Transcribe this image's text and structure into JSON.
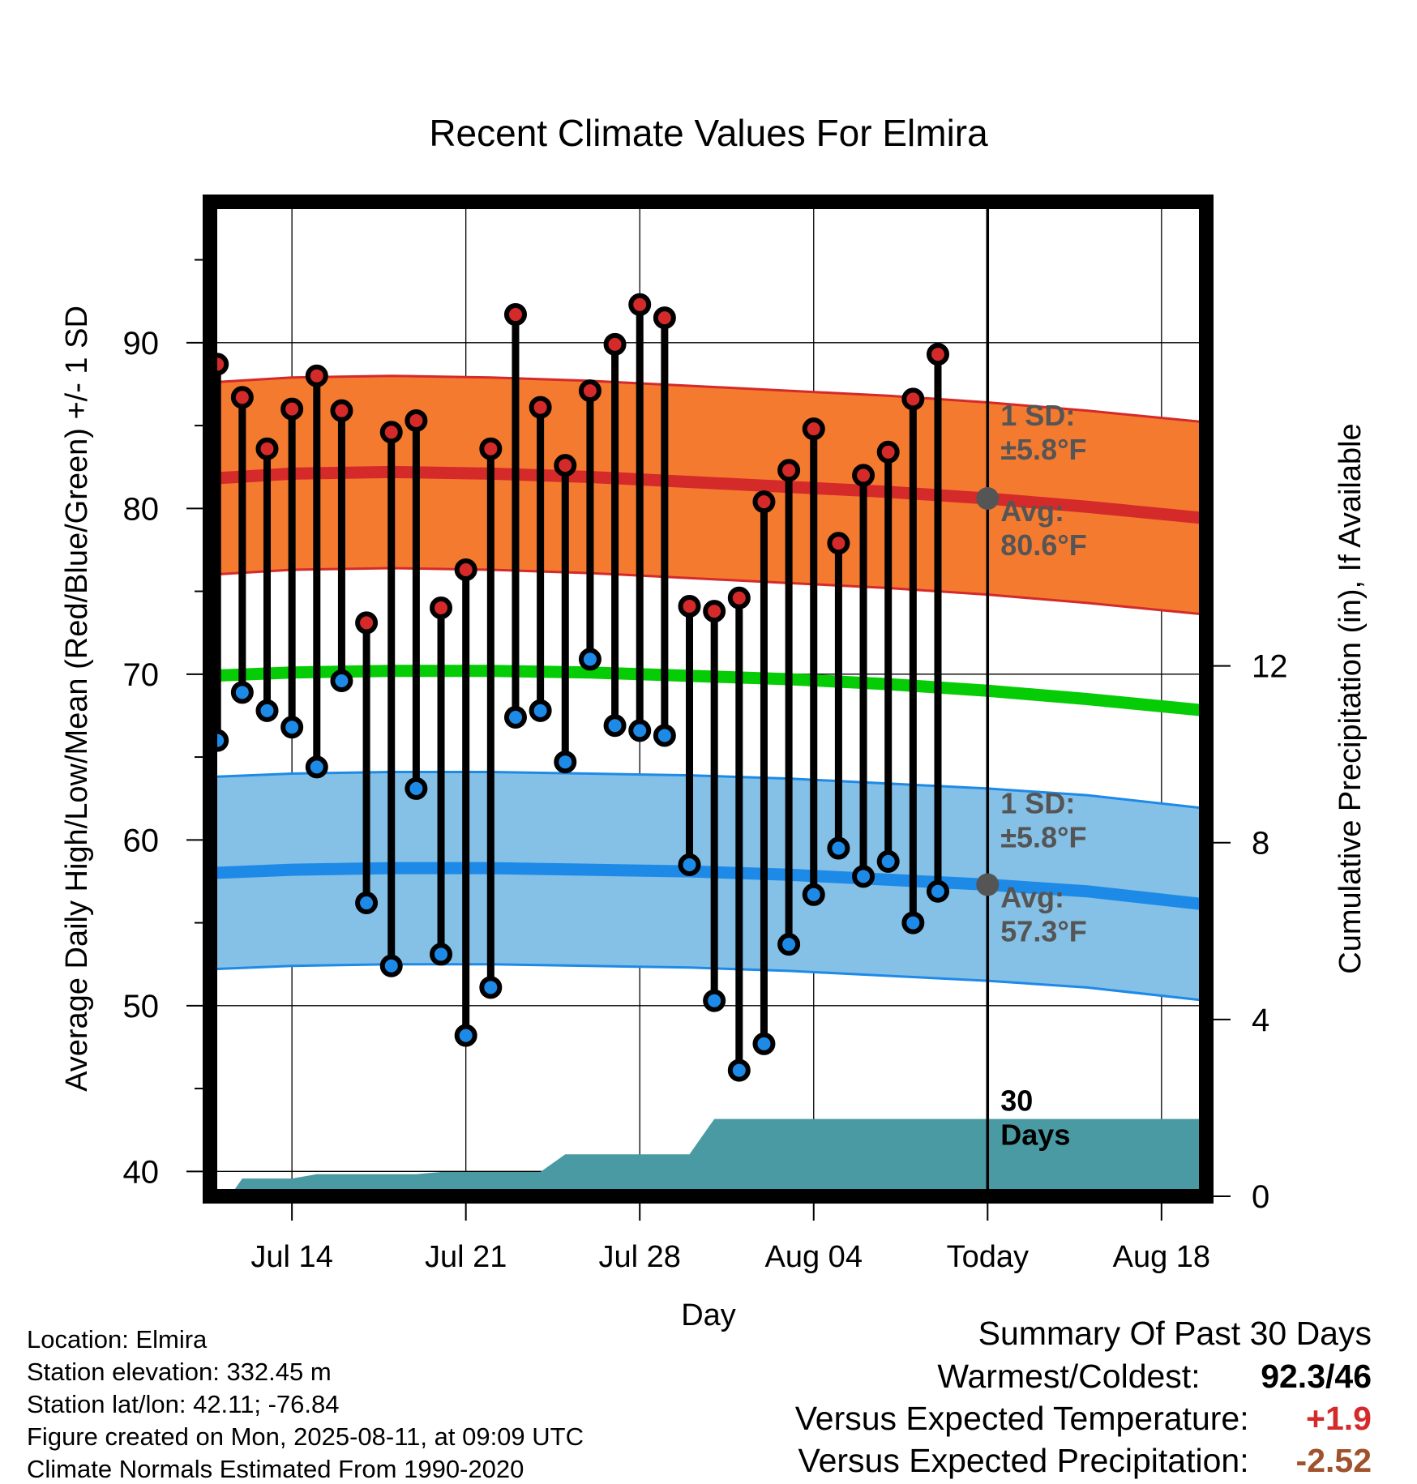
{
  "chart_data": {
    "type": "line",
    "title": "Recent Climate Values For Elmira",
    "xlabel": "Day",
    "ylabel": "Average Daily High/Low/Mean (Red/Blue/Green) +/- 1 SD",
    "y2label": "Cumulative Precipitation (in), If Available",
    "ylim": [
      38.5,
      98.5
    ],
    "y_ticks": [
      40,
      50,
      60,
      70,
      80,
      90
    ],
    "y2lim": [
      0,
      22.5
    ],
    "y2_ticks": [
      0,
      4,
      8,
      12
    ],
    "x_ticks": [
      {
        "day": 14,
        "label": "Jul 14"
      },
      {
        "day": 21,
        "label": "Jul 21"
      },
      {
        "day": 28,
        "label": "Jul 28"
      },
      {
        "day": 35,
        "label": "Aug 04"
      },
      {
        "day": 42,
        "label": "Today"
      },
      {
        "day": 49,
        "label": "Aug 18"
      }
    ],
    "xlim": [
      10.7,
      50.8
    ],
    "today_day": 42,
    "grid": true,
    "highs": [
      88.7,
      86.7,
      83.6,
      86.0,
      88.0,
      85.9,
      73.1,
      84.6,
      85.3,
      74.0,
      76.3,
      83.6,
      91.7,
      86.1,
      82.6,
      87.1,
      89.9,
      92.3,
      91.5,
      74.1,
      73.8,
      74.6,
      80.4,
      82.3,
      84.8,
      77.9,
      82.0,
      83.4,
      86.6,
      89.3
    ],
    "lows": [
      66.0,
      68.9,
      67.8,
      66.8,
      64.4,
      69.6,
      56.2,
      52.4,
      63.1,
      53.1,
      48.2,
      51.1,
      67.4,
      67.8,
      64.7,
      70.9,
      66.9,
      66.6,
      66.3,
      58.5,
      50.3,
      46.1,
      47.7,
      53.7,
      56.7,
      59.5,
      57.8,
      58.7,
      55.0,
      56.9
    ],
    "days": [
      11,
      12,
      13,
      14,
      15,
      16,
      17,
      18,
      19,
      20,
      21,
      22,
      23,
      24,
      25,
      26,
      27,
      28,
      29,
      30,
      31,
      32,
      33,
      34,
      35,
      36,
      37,
      38,
      39,
      40
    ],
    "normal_days": [
      10.7,
      14,
      18,
      22,
      26,
      30,
      34,
      38,
      42,
      46,
      50.8
    ],
    "normal_high": [
      81.8,
      82.1,
      82.2,
      82.1,
      81.9,
      81.6,
      81.3,
      81.0,
      80.6,
      80.1,
      79.4
    ],
    "normal_low": [
      58.0,
      58.2,
      58.3,
      58.3,
      58.2,
      58.1,
      57.9,
      57.6,
      57.3,
      56.9,
      56.1
    ],
    "normal_mean": [
      69.9,
      70.1,
      70.2,
      70.2,
      70.1,
      69.9,
      69.7,
      69.4,
      69.0,
      68.5,
      67.8
    ],
    "sd": 5.8,
    "precip_steps": [
      {
        "day": 10.7,
        "in": 0.0
      },
      {
        "day": 11.5,
        "in": 0.0
      },
      {
        "day": 12.0,
        "in": 0.4
      },
      {
        "day": 14.0,
        "in": 0.4
      },
      {
        "day": 15.0,
        "in": 0.5
      },
      {
        "day": 19.0,
        "in": 0.5
      },
      {
        "day": 20.0,
        "in": 0.55
      },
      {
        "day": 24.0,
        "in": 0.55
      },
      {
        "day": 25.0,
        "in": 0.95
      },
      {
        "day": 26.0,
        "in": 0.95
      },
      {
        "day": 30.0,
        "in": 0.95
      },
      {
        "day": 31.0,
        "in": 1.75
      },
      {
        "day": 50.8,
        "in": 1.75
      }
    ],
    "annotations": {
      "high_sd_label": [
        "1 SD:",
        "±5.8°F"
      ],
      "high_avg_label": [
        "Avg:",
        "80.6°F"
      ],
      "low_sd_label": [
        "1 SD:",
        "±5.8°F"
      ],
      "low_avg_label": [
        "Avg:",
        "57.3°F"
      ],
      "precip_label": [
        "30",
        "Days"
      ]
    },
    "colors": {
      "high_band": "#f47a30",
      "high_line": "#d42a2a",
      "low_band": "#85c0e6",
      "low_line": "#1e8ae8",
      "mean_line": "#05cc05",
      "precip_fill": "#4a9aa3",
      "high_dot": "#d42a2a",
      "low_dot": "#1e8ae8",
      "annotation_text": "#555555"
    }
  },
  "info": {
    "location": "Location: Elmira",
    "elevation": "Station elevation: 332.45 m",
    "latlon": "Station lat/lon: 42.11; -76.84",
    "created": "Figure created on Mon, 2025-08-11, at 09:09 UTC",
    "normals": "Climate Normals Estimated From 1990-2020"
  },
  "summary": {
    "title": "Summary Of Past 30 Days",
    "warm_cold_label": "Warmest/Coldest:",
    "warm_cold_value": "92.3/46",
    "temp_label": "Versus Expected Temperature:",
    "temp_value": "+1.9",
    "temp_color": "#d42a2a",
    "precip_label": "Versus Expected Precipitation:",
    "precip_value": "-2.52",
    "precip_color": "#a0522d"
  }
}
